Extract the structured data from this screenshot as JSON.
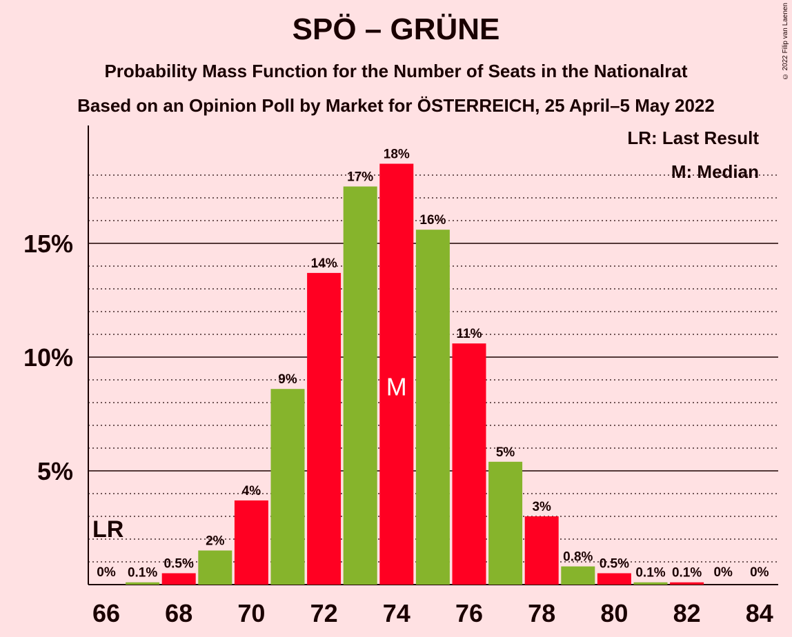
{
  "title": "SPÖ – GRÜNE",
  "subtitle1": "Probability Mass Function for the Number of Seats in the Nationalrat",
  "subtitle2": "Based on an Opinion Poll by Market for ÖSTERREICH, 25 April–5 May 2022",
  "copyright": "© 2022 Filip van Laenen",
  "legend": {
    "lr": "LR: Last Result",
    "m": "M: Median"
  },
  "colors": {
    "red": "#ff0022",
    "green": "#86b42c",
    "background": "#ffe1e3",
    "text": "#1a0000"
  },
  "chart_data": {
    "type": "bar",
    "categories": [
      66,
      67,
      68,
      69,
      70,
      71,
      72,
      73,
      74,
      75,
      76,
      77,
      78,
      79,
      80,
      81,
      82,
      83,
      84
    ],
    "values": [
      0.0,
      0.1,
      0.5,
      1.5,
      3.7,
      8.6,
      13.7,
      17.5,
      18.5,
      15.6,
      10.6,
      5.4,
      3.0,
      0.8,
      0.5,
      0.1,
      0.1,
      0.0,
      0.0
    ],
    "data_labels": [
      "0%",
      "0.1%",
      "0.5%",
      "2%",
      "4%",
      "9%",
      "14%",
      "17%",
      "18%",
      "16%",
      "11%",
      "5%",
      "3%",
      "0.8%",
      "0.5%",
      "0.1%",
      "0.1%",
      "0%",
      "0%"
    ],
    "bar_colors": [
      "red",
      "green",
      "red",
      "green",
      "red",
      "green",
      "red",
      "green",
      "red",
      "green",
      "red",
      "green",
      "red",
      "green",
      "red",
      "green",
      "red",
      "green",
      "red"
    ],
    "x_tick_labels": [
      "66",
      "68",
      "70",
      "72",
      "74",
      "76",
      "78",
      "80",
      "82",
      "84"
    ],
    "y_ticks": [
      5,
      10,
      15
    ],
    "y_tick_labels": [
      "5%",
      "10%",
      "15%"
    ],
    "ylim": [
      0,
      20
    ],
    "last_result": {
      "seats": 66,
      "label": "LR"
    },
    "median": {
      "seats": 74,
      "label": "M"
    },
    "legend_position": "top-right"
  }
}
